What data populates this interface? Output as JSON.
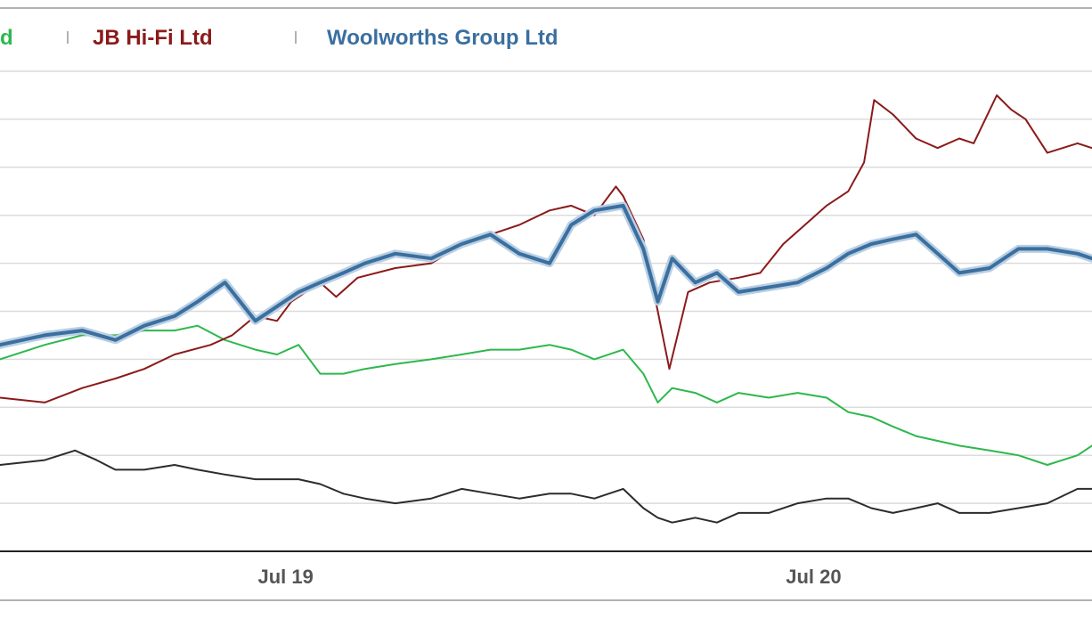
{
  "chart_data": {
    "type": "line",
    "title": "",
    "xlabel": "",
    "ylabel": "",
    "grid": true,
    "legend_position": "top",
    "x_ticks": [
      "Jul 19",
      "Jul 20"
    ],
    "x_range": [
      "2018-12-15",
      "2021-01-10"
    ],
    "y_range": [
      0,
      10
    ],
    "legend": [
      {
        "label": "d",
        "color": "#2db84d"
      },
      {
        "label": "JB Hi-Fi Ltd",
        "color": "#8b1a1a"
      },
      {
        "label": "Woolworths Group Ltd",
        "color": "#3a6f9f"
      }
    ],
    "series": [
      {
        "name": "JB Hi-Fi Ltd",
        "color": "#8b1a1a",
        "x": [
          "2018-12-15",
          "2019-01-15",
          "2019-02-10",
          "2019-03-05",
          "2019-03-25",
          "2019-04-15",
          "2019-05-10",
          "2019-05-25",
          "2019-06-10",
          "2019-06-25",
          "2019-07-05",
          "2019-07-25",
          "2019-08-05",
          "2019-08-20",
          "2019-09-15",
          "2019-10-10",
          "2019-11-01",
          "2019-11-20",
          "2019-12-10",
          "2019-12-31",
          "2020-01-15",
          "2020-01-31",
          "2020-02-15",
          "2020-02-20",
          "2020-03-05",
          "2020-03-15",
          "2020-03-23",
          "2020-04-05",
          "2020-04-20",
          "2020-05-10",
          "2020-05-25",
          "2020-06-10",
          "2020-06-25",
          "2020-07-10",
          "2020-07-25",
          "2020-08-05",
          "2020-08-12",
          "2020-08-25",
          "2020-09-10",
          "2020-09-25",
          "2020-10-10",
          "2020-10-20",
          "2020-11-05",
          "2020-11-15",
          "2020-11-25",
          "2020-12-10",
          "2020-12-31",
          "2021-01-10"
        ],
        "values": [
          3.2,
          3.1,
          3.4,
          3.6,
          3.8,
          4.1,
          4.3,
          4.5,
          4.9,
          4.8,
          5.2,
          5.6,
          5.3,
          5.7,
          5.9,
          6.0,
          6.4,
          6.6,
          6.8,
          7.1,
          7.2,
          7.0,
          7.6,
          7.4,
          6.5,
          5.0,
          3.8,
          5.4,
          5.6,
          5.7,
          5.8,
          6.4,
          6.8,
          7.2,
          7.5,
          8.1,
          9.4,
          9.1,
          8.6,
          8.4,
          8.6,
          8.5,
          9.5,
          9.2,
          9.0,
          8.3,
          8.5,
          8.4
        ]
      },
      {
        "name": "Woolworths Group Ltd",
        "color": "#3a6f9f",
        "x": [
          "2018-12-15",
          "2019-01-15",
          "2019-02-10",
          "2019-03-05",
          "2019-03-25",
          "2019-04-15",
          "2019-05-01",
          "2019-05-20",
          "2019-06-10",
          "2019-06-25",
          "2019-07-10",
          "2019-07-25",
          "2019-08-10",
          "2019-08-25",
          "2019-09-15",
          "2019-10-10",
          "2019-10-31",
          "2019-11-20",
          "2019-12-10",
          "2019-12-31",
          "2020-01-15",
          "2020-01-31",
          "2020-02-20",
          "2020-03-05",
          "2020-03-15",
          "2020-03-25",
          "2020-04-10",
          "2020-04-25",
          "2020-05-10",
          "2020-05-31",
          "2020-06-20",
          "2020-07-10",
          "2020-07-25",
          "2020-08-10",
          "2020-08-25",
          "2020-09-10",
          "2020-09-25",
          "2020-10-10",
          "2020-10-31",
          "2020-11-20",
          "2020-12-10",
          "2020-12-31",
          "2021-01-10"
        ],
        "values": [
          4.3,
          4.5,
          4.6,
          4.4,
          4.7,
          4.9,
          5.2,
          5.6,
          4.8,
          5.1,
          5.4,
          5.6,
          5.8,
          6.0,
          6.2,
          6.1,
          6.4,
          6.6,
          6.2,
          6.0,
          6.8,
          7.1,
          7.2,
          6.3,
          5.2,
          6.1,
          5.6,
          5.8,
          5.4,
          5.5,
          5.6,
          5.9,
          6.2,
          6.4,
          6.5,
          6.6,
          6.2,
          5.8,
          5.9,
          6.3,
          6.3,
          6.2,
          6.1
        ]
      },
      {
        "name": "d",
        "color": "#2db84d",
        "x": [
          "2018-12-15",
          "2019-01-15",
          "2019-02-10",
          "2019-03-05",
          "2019-03-25",
          "2019-04-15",
          "2019-05-01",
          "2019-05-20",
          "2019-06-10",
          "2019-06-25",
          "2019-07-10",
          "2019-07-25",
          "2019-08-10",
          "2019-08-25",
          "2019-09-15",
          "2019-10-10",
          "2019-10-31",
          "2019-11-20",
          "2019-12-10",
          "2019-12-31",
          "2020-01-15",
          "2020-01-31",
          "2020-02-20",
          "2020-03-05",
          "2020-03-15",
          "2020-03-25",
          "2020-04-10",
          "2020-04-25",
          "2020-05-10",
          "2020-05-31",
          "2020-06-20",
          "2020-07-10",
          "2020-07-25",
          "2020-08-10",
          "2020-08-25",
          "2020-09-10",
          "2020-09-25",
          "2020-10-10",
          "2020-10-31",
          "2020-11-20",
          "2020-12-10",
          "2020-12-31",
          "2021-01-10"
        ],
        "values": [
          4.0,
          4.3,
          4.5,
          4.5,
          4.6,
          4.6,
          4.7,
          4.4,
          4.2,
          4.1,
          4.3,
          3.7,
          3.7,
          3.8,
          3.9,
          4.0,
          4.1,
          4.2,
          4.2,
          4.3,
          4.2,
          4.0,
          4.2,
          3.7,
          3.1,
          3.4,
          3.3,
          3.1,
          3.3,
          3.2,
          3.3,
          3.2,
          2.9,
          2.8,
          2.6,
          2.4,
          2.3,
          2.2,
          2.1,
          2.0,
          1.8,
          2.0,
          2.2
        ]
      },
      {
        "name": "",
        "color": "#2c2c2c",
        "x": [
          "2018-12-15",
          "2019-01-15",
          "2019-02-05",
          "2019-02-20",
          "2019-03-05",
          "2019-03-25",
          "2019-04-15",
          "2019-05-01",
          "2019-05-20",
          "2019-06-10",
          "2019-06-25",
          "2019-07-10",
          "2019-07-25",
          "2019-08-10",
          "2019-08-25",
          "2019-09-15",
          "2019-10-10",
          "2019-10-31",
          "2019-11-20",
          "2019-12-10",
          "2019-12-31",
          "2020-01-15",
          "2020-01-31",
          "2020-02-20",
          "2020-03-05",
          "2020-03-15",
          "2020-03-25",
          "2020-04-10",
          "2020-04-25",
          "2020-05-10",
          "2020-05-31",
          "2020-06-20",
          "2020-07-10",
          "2020-07-25",
          "2020-08-10",
          "2020-08-25",
          "2020-09-10",
          "2020-09-25",
          "2020-10-10",
          "2020-10-31",
          "2020-11-20",
          "2020-12-10",
          "2020-12-31",
          "2021-01-10"
        ],
        "values": [
          1.8,
          1.9,
          2.1,
          1.9,
          1.7,
          1.7,
          1.8,
          1.7,
          1.6,
          1.5,
          1.5,
          1.5,
          1.4,
          1.2,
          1.1,
          1.0,
          1.1,
          1.3,
          1.2,
          1.1,
          1.2,
          1.2,
          1.1,
          1.3,
          0.9,
          0.7,
          0.6,
          0.7,
          0.6,
          0.8,
          0.8,
          1.0,
          1.1,
          1.1,
          0.9,
          0.8,
          0.9,
          1.0,
          0.8,
          0.8,
          0.9,
          1.0,
          1.3,
          1.3
        ]
      }
    ]
  }
}
